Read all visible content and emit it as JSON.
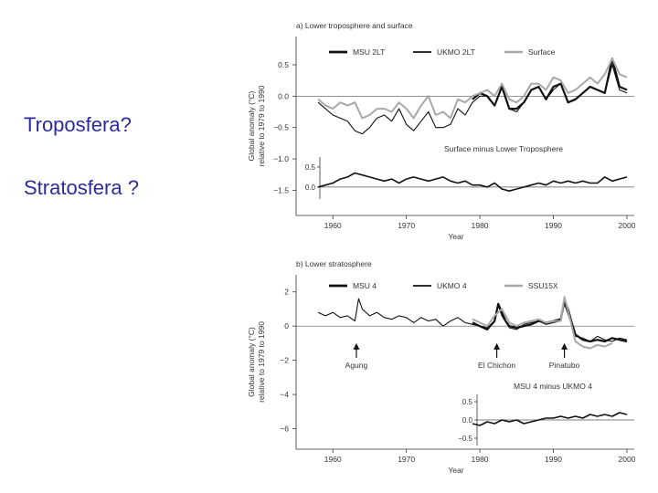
{
  "bullets": [
    "Troposfera?",
    "Stratosfera ?"
  ],
  "colors": {
    "bullet_text": "#2b2b9b",
    "series_black": "#111111",
    "series_gray": "#a8a8a8"
  },
  "chart_data": [
    {
      "type": "line",
      "title": "a) Lower troposphere and surface",
      "xlabel": "Year",
      "ylabel": "Global anomaly (°C) relative to 1979 to 1990",
      "xlim": [
        1955,
        2001
      ],
      "ylim": [
        -1.9,
        0.95
      ],
      "x_ticks": [
        1960,
        1970,
        1980,
        1990,
        2000
      ],
      "y_ticks": [
        0.5,
        0.0,
        -0.5,
        -1.0,
        -1.5
      ],
      "x_tick_labels": [
        "1960",
        "1970",
        "1980",
        "1990",
        "2000"
      ],
      "y_tick_labels": [
        "0.5",
        "0.0",
        "−0.5",
        "−1.0",
        "−1.5"
      ],
      "legend": [
        "MSU 2LT",
        "UKMO 2LT",
        "Surface"
      ],
      "legend_position": "top",
      "series": [
        {
          "name": "MSU 2LT",
          "x": [
            1979,
            1980,
            1981,
            1982,
            1983,
            1984,
            1985,
            1986,
            1987,
            1988,
            1989,
            1990,
            1991,
            1992,
            1993,
            1994,
            1995,
            1996,
            1997,
            1998,
            1999,
            2000
          ],
          "y": [
            -0.05,
            0.05,
            0.0,
            -0.15,
            0.15,
            -0.2,
            -0.2,
            -0.1,
            0.1,
            0.15,
            -0.05,
            0.15,
            0.2,
            -0.1,
            -0.05,
            0.05,
            0.15,
            0.1,
            0.05,
            0.6,
            0.15,
            0.1
          ]
        },
        {
          "name": "UKMO 2LT",
          "x": [
            1958,
            1959,
            1960,
            1961,
            1962,
            1963,
            1964,
            1965,
            1966,
            1967,
            1968,
            1969,
            1970,
            1971,
            1972,
            1973,
            1974,
            1975,
            1976,
            1977,
            1978,
            1979,
            1980,
            1981,
            1982,
            1983,
            1984,
            1985,
            1986,
            1987,
            1988,
            1989,
            1990,
            1991,
            1992,
            1993,
            1994,
            1995,
            1996,
            1997,
            1998,
            1999,
            2000
          ],
          "y": [
            -0.1,
            -0.2,
            -0.3,
            -0.35,
            -0.4,
            -0.55,
            -0.6,
            -0.5,
            -0.35,
            -0.3,
            -0.4,
            -0.2,
            -0.45,
            -0.55,
            -0.4,
            -0.25,
            -0.5,
            -0.5,
            -0.45,
            -0.2,
            -0.3,
            -0.1,
            0.0,
            0.0,
            -0.15,
            0.15,
            -0.2,
            -0.25,
            -0.1,
            0.1,
            0.15,
            -0.05,
            0.1,
            0.2,
            -0.1,
            -0.05,
            0.05,
            0.15,
            0.1,
            0.05,
            0.5,
            0.1,
            0.05
          ]
        },
        {
          "name": "Surface",
          "x": [
            1958,
            1959,
            1960,
            1961,
            1962,
            1963,
            1964,
            1965,
            1966,
            1967,
            1968,
            1969,
            1970,
            1971,
            1972,
            1973,
            1974,
            1975,
            1976,
            1977,
            1978,
            1979,
            1980,
            1981,
            1982,
            1983,
            1984,
            1985,
            1986,
            1987,
            1988,
            1989,
            1990,
            1991,
            1992,
            1993,
            1994,
            1995,
            1996,
            1997,
            1998,
            1999,
            2000
          ],
          "y": [
            -0.05,
            -0.15,
            -0.2,
            -0.1,
            -0.15,
            -0.1,
            -0.35,
            -0.3,
            -0.2,
            -0.2,
            -0.25,
            -0.1,
            -0.2,
            -0.35,
            -0.15,
            0.0,
            -0.3,
            -0.25,
            -0.35,
            -0.05,
            -0.1,
            0.0,
            0.05,
            0.1,
            0.0,
            0.2,
            -0.05,
            -0.1,
            0.0,
            0.2,
            0.2,
            0.1,
            0.3,
            0.25,
            0.05,
            0.1,
            0.2,
            0.3,
            0.2,
            0.35,
            0.6,
            0.35,
            0.3
          ]
        }
      ],
      "inset": {
        "title": "Surface minus Lower Troposphere",
        "ylim": [
          -0.3,
          0.75
        ],
        "y_ticks": [
          0.5,
          0.0
        ],
        "y_tick_labels": [
          "0.5",
          "0.0"
        ],
        "series": [
          {
            "x": [
              1958,
              1959,
              1960,
              1961,
              1962,
              1963,
              1964,
              1965,
              1966,
              1967,
              1968,
              1969,
              1970,
              1971,
              1972,
              1973,
              1974,
              1975,
              1976,
              1977,
              1978,
              1979,
              1980,
              1981,
              1982,
              1983,
              1984,
              1985,
              1986,
              1987,
              1988,
              1989,
              1990,
              1991,
              1992,
              1993,
              1994,
              1995,
              1996,
              1997,
              1998,
              1999,
              2000
            ],
            "y": [
              0.0,
              0.05,
              0.1,
              0.2,
              0.25,
              0.35,
              0.3,
              0.25,
              0.2,
              0.15,
              0.2,
              0.1,
              0.2,
              0.25,
              0.2,
              0.15,
              0.2,
              0.25,
              0.15,
              0.1,
              0.15,
              0.05,
              0.05,
              0.0,
              0.1,
              -0.05,
              -0.1,
              -0.05,
              0.0,
              0.05,
              0.1,
              0.05,
              0.15,
              0.1,
              0.15,
              0.1,
              0.15,
              0.1,
              0.1,
              0.25,
              0.15,
              0.2,
              0.25
            ]
          }
        ]
      }
    },
    {
      "type": "line",
      "title": "b) Lower stratosphere",
      "xlabel": "Year",
      "ylabel": "Global anomaly (°C) relative to 1979 to 1990",
      "xlim": [
        1955,
        2001
      ],
      "ylim": [
        -7.2,
        3.0
      ],
      "x_ticks": [
        1960,
        1970,
        1980,
        1990,
        2000
      ],
      "y_ticks": [
        2,
        0,
        -2,
        -4,
        -6
      ],
      "x_tick_labels": [
        "1960",
        "1970",
        "1980",
        "1990",
        "2000"
      ],
      "y_tick_labels": [
        "2",
        "0",
        "−2",
        "−4",
        "−6"
      ],
      "legend": [
        "MSU 4",
        "UKMO 4",
        "SSU15X"
      ],
      "legend_position": "top",
      "annotations": [
        {
          "label": "Agung",
          "x": 1963.2,
          "y": -1.0
        },
        {
          "label": "El Chichon",
          "x": 1982.3,
          "y": -1.0
        },
        {
          "label": "Pinatubo",
          "x": 1991.5,
          "y": -1.0
        }
      ],
      "series": [
        {
          "name": "MSU 4",
          "x": [
            1979,
            1980,
            1981,
            1982,
            1982.5,
            1983,
            1983.5,
            1984,
            1985,
            1986,
            1987,
            1988,
            1989,
            1990,
            1991,
            1991.5,
            1992,
            1992.5,
            1993,
            1994,
            1995,
            1996,
            1997,
            1998,
            1999,
            2000
          ],
          "y": [
            0.2,
            0.0,
            -0.2,
            0.3,
            1.3,
            0.8,
            0.3,
            0.0,
            -0.1,
            0.0,
            0.1,
            0.3,
            0.2,
            0.3,
            0.4,
            1.5,
            1.0,
            0.2,
            -0.5,
            -0.8,
            -0.9,
            -0.8,
            -0.9,
            -0.7,
            -0.8,
            -0.9
          ]
        },
        {
          "name": "UKMO 4",
          "x": [
            1958,
            1959,
            1960,
            1961,
            1962,
            1963,
            1963.5,
            1964,
            1965,
            1966,
            1967,
            1968,
            1969,
            1970,
            1971,
            1972,
            1973,
            1974,
            1975,
            1976,
            1977,
            1978,
            1979,
            1980,
            1981,
            1982,
            1982.5,
            1983,
            1984,
            1985,
            1986,
            1987,
            1988,
            1989,
            1990,
            1991,
            1991.5,
            1992,
            1993,
            1994,
            1995,
            1996,
            1997,
            1998,
            1999,
            2000
          ],
          "y": [
            0.8,
            0.6,
            0.8,
            0.5,
            0.6,
            0.3,
            1.6,
            1.0,
            0.6,
            0.8,
            0.5,
            0.4,
            0.6,
            0.5,
            0.2,
            0.5,
            0.3,
            0.4,
            0.0,
            0.3,
            0.5,
            0.2,
            0.1,
            0.0,
            -0.1,
            0.3,
            1.2,
            0.6,
            -0.1,
            -0.2,
            0.1,
            0.2,
            0.3,
            0.1,
            0.2,
            0.3,
            1.3,
            0.7,
            -0.6,
            -0.7,
            -0.9,
            -0.6,
            -0.8,
            -0.9,
            -0.7,
            -0.8
          ]
        },
        {
          "name": "SSU15X",
          "x": [
            1979,
            1980,
            1981,
            1982,
            1983,
            1984,
            1985,
            1986,
            1987,
            1988,
            1989,
            1990,
            1991,
            1991.5,
            1992,
            1993,
            1994,
            1995,
            1996,
            1997,
            1998
          ],
          "y": [
            0.4,
            0.2,
            0.0,
            0.6,
            1.0,
            0.2,
            0.0,
            0.2,
            0.3,
            0.4,
            0.2,
            0.3,
            0.3,
            1.7,
            0.9,
            -0.9,
            -1.2,
            -1.3,
            -1.1,
            -1.2,
            -1.0
          ]
        }
      ],
      "inset": {
        "title": "MSU 4 minus UKMO 4",
        "ylim": [
          -0.7,
          0.7
        ],
        "y_ticks": [
          0.5,
          0.0,
          -0.5
        ],
        "y_tick_labels": [
          "0.5",
          "0.0",
          "−0.5"
        ],
        "series": [
          {
            "x": [
              1979,
              1980,
              1981,
              1982,
              1983,
              1984,
              1985,
              1986,
              1987,
              1988,
              1989,
              1990,
              1991,
              1992,
              1993,
              1994,
              1995,
              1996,
              1997,
              1998,
              1999,
              2000
            ],
            "y": [
              -0.1,
              -0.15,
              -0.05,
              -0.1,
              0.0,
              -0.05,
              0.0,
              -0.1,
              -0.05,
              0.0,
              0.05,
              0.05,
              0.1,
              0.05,
              0.1,
              0.05,
              0.15,
              0.1,
              0.15,
              0.1,
              0.2,
              0.15
            ]
          }
        ]
      }
    }
  ]
}
